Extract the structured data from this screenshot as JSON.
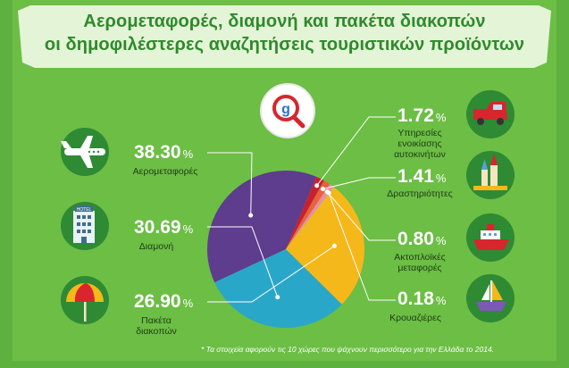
{
  "title_line1": "Αερομεταφορές, διαμονή και πακέτα διακοπών",
  "title_line2": "οι δημοφιλέστερες αναζητήσεις τουριστικών προϊόντων",
  "footnote": "* Τα στοιχεία αφορούν τις 10 χώρες που ψάχνουν περισσότερο για την Ελλάδα το 2014.",
  "unit": "%",
  "hotel_sign": "HOTEL",
  "search_logo_letter": "g",
  "colors": {
    "background": "#6cbe45",
    "banner": "#e4f4d7",
    "icon_circle": "#2f8a34",
    "airfare": "#5e3c8e",
    "accommodation": "#29a7c9",
    "packages": "#f5b81a",
    "car_rental": "#c8202f",
    "activities": "#e8623a",
    "ferries": "#f08aa6",
    "cruises": "#b9a8d8"
  },
  "chart_data": {
    "type": "pie",
    "title": "",
    "slices": [
      {
        "label": "Αερομεταφορές",
        "value": 38.3,
        "display": "38.30",
        "icon": "airplane-icon"
      },
      {
        "label": "Διαμονή",
        "value": 30.69,
        "display": "30.69",
        "icon": "hotel-icon"
      },
      {
        "label": "Πακέτα διακοπών",
        "lines": [
          "Πακέτα",
          "διακοπών"
        ],
        "value": 26.9,
        "display": "26.90",
        "icon": "beach-umbrella-icon"
      },
      {
        "label": "Υπηρεσίες ενοικίασης αυτοκινήτων",
        "lines": [
          "Υπηρεσίες",
          "ενοικίασης",
          "αυτοκινήτων"
        ],
        "value": 1.72,
        "display": "1.72",
        "icon": "car-icon"
      },
      {
        "label": "Δραστηριότητες",
        "value": 1.41,
        "display": "1.41",
        "icon": "sandcastle-icon"
      },
      {
        "label": "Ακτοπλοϊκές μεταφορές",
        "lines": [
          "Ακτοπλοϊκές",
          "μεταφορές"
        ],
        "value": 0.8,
        "display": "0.80",
        "icon": "ferry-icon"
      },
      {
        "label": "Κρουαζιέρες",
        "value": 0.18,
        "display": "0.18",
        "icon": "sailboat-icon"
      }
    ]
  }
}
